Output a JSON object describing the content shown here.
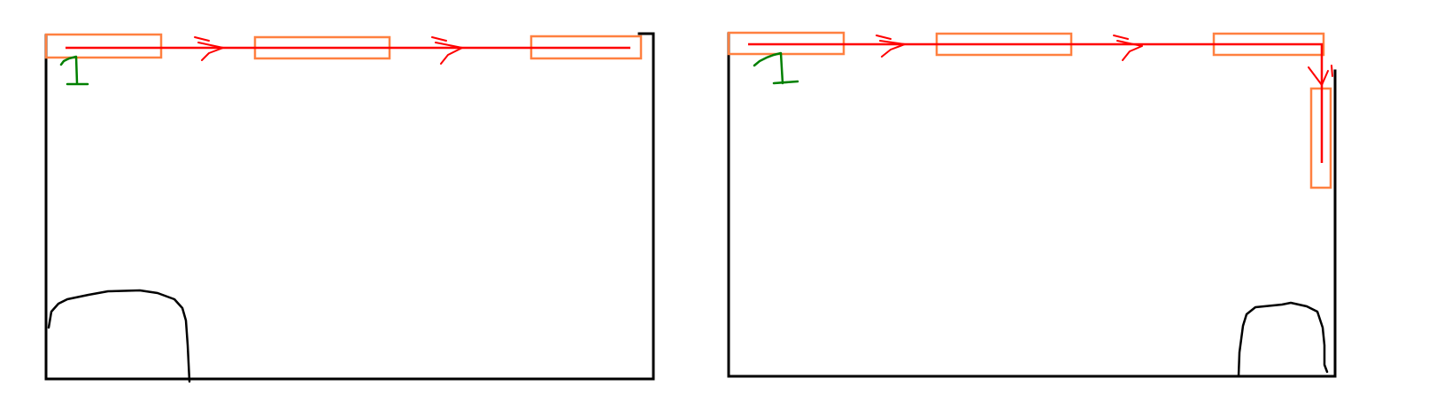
{
  "diagram": {
    "panels": [
      {
        "name": "left-panel",
        "segments_count": 3,
        "path_direction": "right",
        "has_corner_turn": false
      },
      {
        "name": "right-panel",
        "segments_count": 4,
        "path_direction": "right-then-down",
        "has_corner_turn": true
      }
    ],
    "colors": {
      "wall": "#000000",
      "path": "#ff0000",
      "segment": "#ff8040",
      "marker": "#008000",
      "background": "#ffffff"
    }
  }
}
